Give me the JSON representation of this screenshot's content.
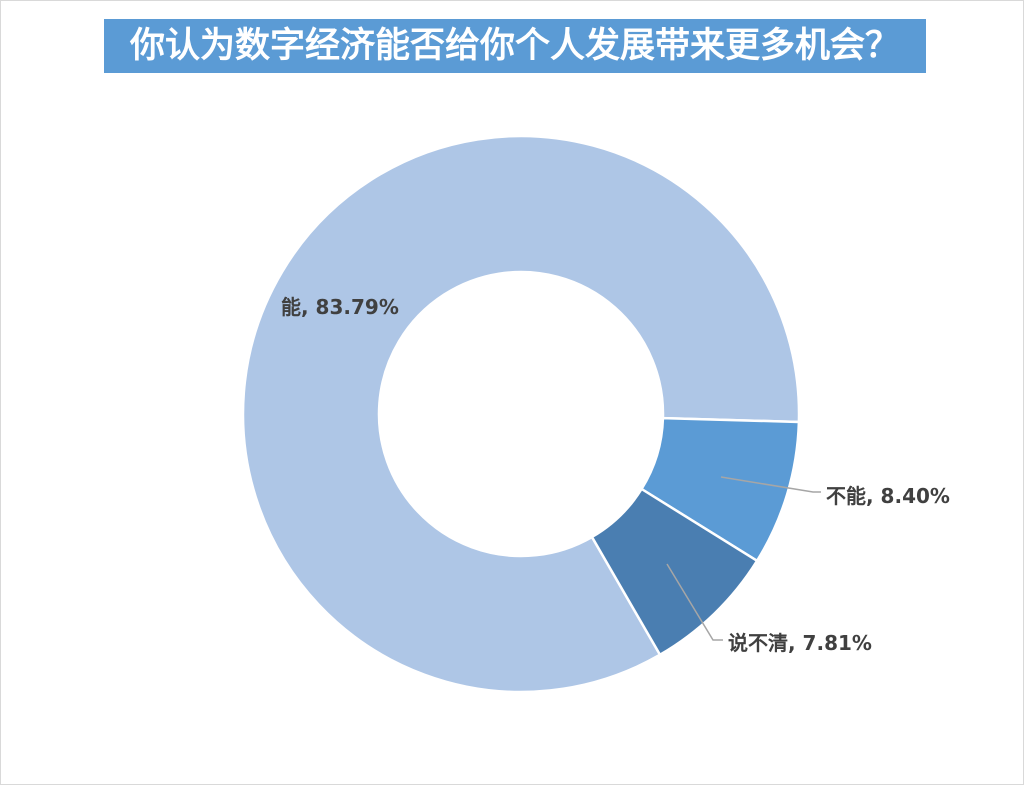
{
  "chart_data": {
    "type": "pie",
    "donut": true,
    "title": "你认为数字经济能否给你个人发展带来更多机会？",
    "slices": [
      {
        "label": "能",
        "value": 83.79,
        "color": "#AEC6E6"
      },
      {
        "label": "不能",
        "value": 8.4,
        "color": "#5B9BD5"
      },
      {
        "label": "说不清",
        "value": 7.81,
        "color": "#4A7EB1"
      }
    ]
  },
  "colors": {
    "title_background": "#5B9BD5",
    "title_text": "#FFFFFF",
    "data_label": "#404040",
    "leader_line": "#A6A6A6",
    "slice_separator": "#FFFFFF"
  }
}
